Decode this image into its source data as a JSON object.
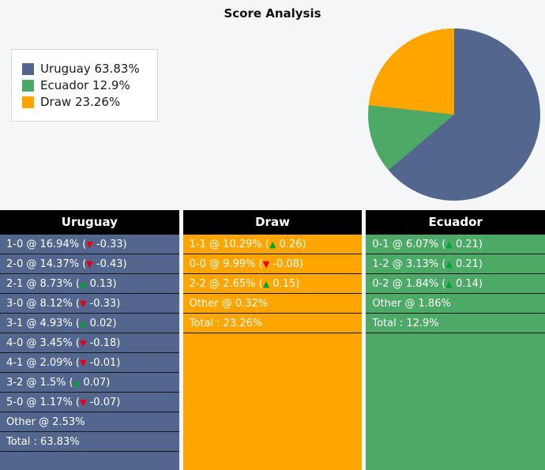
{
  "title": "Score Analysis",
  "chart_data": {
    "type": "pie",
    "title": "Score Analysis",
    "labels": [
      "Uruguay",
      "Ecuador",
      "Draw"
    ],
    "values": [
      63.83,
      12.9,
      23.26
    ],
    "colors": [
      "#53678e",
      "#4ca966",
      "#ffa500"
    ],
    "start_angle": "top",
    "direction": "clockwise",
    "legend_position": "upper-left"
  },
  "legend": {
    "items": [
      {
        "label": "Uruguay 63.83%",
        "color": "#53678e"
      },
      {
        "label": "Ecuador 12.9%",
        "color": "#4ca966"
      },
      {
        "label": "Draw 23.26%",
        "color": "#ffa500"
      }
    ]
  },
  "arrow_colors": {
    "up": "#00a432",
    "down": "#e60012"
  },
  "tables": [
    {
      "header": "Uruguay",
      "color": "#53678e",
      "rows": [
        {
          "text": "1-0 @ 16.94%",
          "arrow": "down",
          "delta": "-0.33"
        },
        {
          "text": "2-0 @ 14.37%",
          "arrow": "down",
          "delta": "-0.43"
        },
        {
          "text": "2-1 @ 8.73%",
          "arrow": "up",
          "delta": "0.13"
        },
        {
          "text": "3-0 @ 8.12%",
          "arrow": "down",
          "delta": "-0.33"
        },
        {
          "text": "3-1 @ 4.93%",
          "arrow": "up",
          "delta": "0.02"
        },
        {
          "text": "4-0 @ 3.45%",
          "arrow": "down",
          "delta": "-0.18"
        },
        {
          "text": "4-1 @ 2.09%",
          "arrow": "down",
          "delta": "-0.01"
        },
        {
          "text": "3-2 @ 1.5%",
          "arrow": "up",
          "delta": "0.07"
        },
        {
          "text": "5-0 @ 1.17%",
          "arrow": "down",
          "delta": "-0.07"
        },
        {
          "text": "Other @ 2.53%"
        },
        {
          "text": "Total : 63.83%"
        }
      ]
    },
    {
      "header": "Draw",
      "color": "#ffa500",
      "rows": [
        {
          "text": "1-1 @ 10.29%",
          "arrow": "up",
          "delta": "0.26"
        },
        {
          "text": "0-0 @ 9.99%",
          "arrow": "down",
          "delta": "-0.08"
        },
        {
          "text": "2-2 @ 2.65%",
          "arrow": "up",
          "delta": "0.15"
        },
        {
          "text": "Other @ 0.32%"
        },
        {
          "text": "Total : 23.26%"
        }
      ]
    },
    {
      "header": "Ecuador",
      "color": "#4ca966",
      "rows": [
        {
          "text": "0-1 @ 6.07%",
          "arrow": "up",
          "delta": "0.21"
        },
        {
          "text": "1-2 @ 3.13%",
          "arrow": "up",
          "delta": "0.21"
        },
        {
          "text": "0-2 @ 1.84%",
          "arrow": "up",
          "delta": "0.14"
        },
        {
          "text": "Other @ 1.86%"
        },
        {
          "text": "Total : 12.9%"
        }
      ]
    }
  ]
}
